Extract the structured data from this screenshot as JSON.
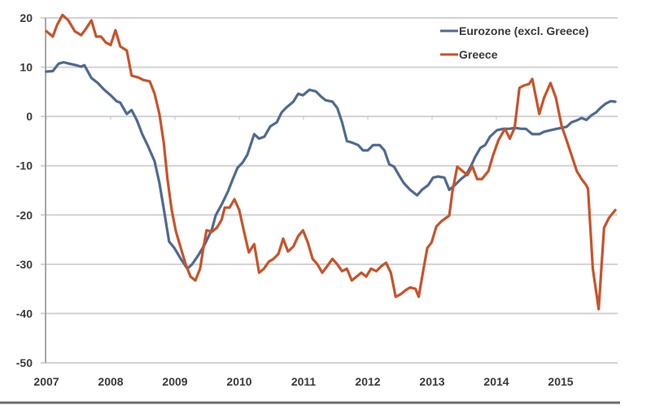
{
  "chart_data": {
    "type": "line",
    "title": "",
    "xlabel": "",
    "ylabel": "",
    "x_unit": "months since Jan 2007",
    "xlim": [
      0,
      107
    ],
    "ylim": [
      -50,
      20
    ],
    "grid": true,
    "legend_position": "top-right",
    "x_tick_labels": [
      {
        "label": "2007",
        "x": 0
      },
      {
        "label": "2008",
        "x": 12
      },
      {
        "label": "2009",
        "x": 24
      },
      {
        "label": "2010",
        "x": 36
      },
      {
        "label": "2011",
        "x": 48
      },
      {
        "label": "2012",
        "x": 60
      },
      {
        "label": "2013",
        "x": 72
      },
      {
        "label": "2014",
        "x": 84
      },
      {
        "label": "2015",
        "x": 96
      }
    ],
    "y_ticks": [
      20,
      10,
      0,
      -10,
      -20,
      -30,
      -40,
      -50
    ],
    "y_tick_labels": [
      "20",
      "10",
      "0",
      "-10",
      "-20",
      "-30",
      "-40",
      "-50"
    ],
    "series": [
      {
        "name": "Eurozone (excl. Greece)",
        "color": "#4f6a8f",
        "points": [
          [
            0,
            9.1
          ],
          [
            1.2,
            9.2
          ],
          [
            2.3,
            10.7
          ],
          [
            3.2,
            11.0
          ],
          [
            4.3,
            10.7
          ],
          [
            5.5,
            10.4
          ],
          [
            6.5,
            10.1
          ],
          [
            7.1,
            10.4
          ],
          [
            8.4,
            7.8
          ],
          [
            9.6,
            6.8
          ],
          [
            10.8,
            5.4
          ],
          [
            12.0,
            4.3
          ],
          [
            13.1,
            3.1
          ],
          [
            13.8,
            2.8
          ],
          [
            15.0,
            0.5
          ],
          [
            15.9,
            1.3
          ],
          [
            16.9,
            -0.8
          ],
          [
            17.9,
            -3.6
          ],
          [
            19.0,
            -6.1
          ],
          [
            20.2,
            -9.1
          ],
          [
            21.1,
            -13.5
          ],
          [
            22.0,
            -19.3
          ],
          [
            22.9,
            -25.4
          ],
          [
            23.9,
            -26.7
          ],
          [
            25.1,
            -28.9
          ],
          [
            26.3,
            -30.9
          ],
          [
            27.2,
            -30.0
          ],
          [
            28.4,
            -28.1
          ],
          [
            29.6,
            -25.9
          ],
          [
            30.9,
            -22.9
          ],
          [
            31.6,
            -20.1
          ],
          [
            32.8,
            -17.7
          ],
          [
            33.9,
            -15.2
          ],
          [
            34.8,
            -12.7
          ],
          [
            35.7,
            -10.4
          ],
          [
            36.6,
            -9.4
          ],
          [
            37.5,
            -7.8
          ],
          [
            38.8,
            -3.6
          ],
          [
            39.7,
            -4.5
          ],
          [
            40.7,
            -4.1
          ],
          [
            41.8,
            -2.0
          ],
          [
            43.0,
            -1.2
          ],
          [
            43.9,
            0.8
          ],
          [
            44.8,
            1.8
          ],
          [
            46.1,
            3.0
          ],
          [
            47.0,
            4.6
          ],
          [
            47.9,
            4.3
          ],
          [
            49.1,
            5.4
          ],
          [
            50.3,
            5.1
          ],
          [
            51.2,
            4.1
          ],
          [
            52.1,
            3.3
          ],
          [
            53.4,
            3.0
          ],
          [
            54.3,
            1.7
          ],
          [
            55.2,
            -1.2
          ],
          [
            56.1,
            -5.0
          ],
          [
            57.0,
            -5.3
          ],
          [
            58.2,
            -5.8
          ],
          [
            59.1,
            -6.9
          ],
          [
            60.0,
            -6.9
          ],
          [
            61.0,
            -5.8
          ],
          [
            62.2,
            -5.8
          ],
          [
            63.1,
            -6.9
          ],
          [
            64.0,
            -9.7
          ],
          [
            64.9,
            -10.2
          ],
          [
            65.8,
            -11.9
          ],
          [
            66.7,
            -13.5
          ],
          [
            67.9,
            -14.9
          ],
          [
            69.2,
            -16.0
          ],
          [
            70.1,
            -14.9
          ],
          [
            71.3,
            -13.9
          ],
          [
            72.2,
            -12.4
          ],
          [
            73.1,
            -12.2
          ],
          [
            74.3,
            -12.4
          ],
          [
            75.2,
            -14.9
          ],
          [
            76.2,
            -14.0
          ],
          [
            77.4,
            -12.7
          ],
          [
            78.3,
            -11.9
          ],
          [
            79.2,
            -10.2
          ],
          [
            80.1,
            -8.1
          ],
          [
            81.0,
            -6.4
          ],
          [
            81.9,
            -5.8
          ],
          [
            82.8,
            -4.1
          ],
          [
            84.1,
            -2.8
          ],
          [
            85.3,
            -2.5
          ],
          [
            86.5,
            -2.5
          ],
          [
            87.4,
            -2.3
          ],
          [
            88.6,
            -2.5
          ],
          [
            89.5,
            -2.5
          ],
          [
            90.7,
            -3.6
          ],
          [
            92.0,
            -3.6
          ],
          [
            92.9,
            -3.1
          ],
          [
            94.1,
            -2.8
          ],
          [
            95.3,
            -2.5
          ],
          [
            96.2,
            -2.3
          ],
          [
            97.1,
            -2.1
          ],
          [
            98.0,
            -1.2
          ],
          [
            99.0,
            -0.8
          ],
          [
            99.9,
            -0.3
          ],
          [
            100.8,
            -0.7
          ],
          [
            101.7,
            0.2
          ],
          [
            102.6,
            0.8
          ],
          [
            103.5,
            1.8
          ],
          [
            104.4,
            2.6
          ],
          [
            105.3,
            3.1
          ],
          [
            106.2,
            3.0
          ]
        ]
      },
      {
        "name": "Greece",
        "color": "#c8532a",
        "points": [
          [
            0,
            17.3
          ],
          [
            1.2,
            16.2
          ],
          [
            2.0,
            18.6
          ],
          [
            3.0,
            20.6
          ],
          [
            4.1,
            19.5
          ],
          [
            5.3,
            17.3
          ],
          [
            6.5,
            16.5
          ],
          [
            7.4,
            17.8
          ],
          [
            8.4,
            19.5
          ],
          [
            9.3,
            16.2
          ],
          [
            10.2,
            16.2
          ],
          [
            11.1,
            15.0
          ],
          [
            12.0,
            14.5
          ],
          [
            12.9,
            17.5
          ],
          [
            13.8,
            14.2
          ],
          [
            15.0,
            13.4
          ],
          [
            15.9,
            8.3
          ],
          [
            17.2,
            7.9
          ],
          [
            18.1,
            7.4
          ],
          [
            19.3,
            7.1
          ],
          [
            20.2,
            4.6
          ],
          [
            21.1,
            0.5
          ],
          [
            21.9,
            -5.3
          ],
          [
            22.6,
            -12.7
          ],
          [
            23.4,
            -19.0
          ],
          [
            24.2,
            -23.4
          ],
          [
            25.1,
            -26.7
          ],
          [
            26.0,
            -30.0
          ],
          [
            26.9,
            -32.5
          ],
          [
            27.8,
            -33.3
          ],
          [
            28.7,
            -30.9
          ],
          [
            29.3,
            -26.7
          ],
          [
            29.9,
            -23.1
          ],
          [
            30.9,
            -23.4
          ],
          [
            31.8,
            -22.6
          ],
          [
            32.7,
            -21.0
          ],
          [
            33.3,
            -18.5
          ],
          [
            34.2,
            -18.5
          ],
          [
            35.1,
            -16.8
          ],
          [
            36.0,
            -19.0
          ],
          [
            36.9,
            -23.4
          ],
          [
            37.8,
            -27.6
          ],
          [
            38.8,
            -25.9
          ],
          [
            39.7,
            -31.7
          ],
          [
            40.6,
            -30.9
          ],
          [
            41.5,
            -29.5
          ],
          [
            42.4,
            -28.9
          ],
          [
            43.3,
            -27.9
          ],
          [
            44.2,
            -24.8
          ],
          [
            45.1,
            -27.4
          ],
          [
            46.1,
            -26.4
          ],
          [
            47.0,
            -24.3
          ],
          [
            47.9,
            -23.1
          ],
          [
            48.8,
            -25.6
          ],
          [
            49.7,
            -28.9
          ],
          [
            50.6,
            -30.0
          ],
          [
            51.5,
            -31.7
          ],
          [
            52.4,
            -30.4
          ],
          [
            53.4,
            -28.9
          ],
          [
            54.3,
            -30.0
          ],
          [
            55.2,
            -31.4
          ],
          [
            56.1,
            -30.9
          ],
          [
            57.0,
            -33.3
          ],
          [
            57.9,
            -32.5
          ],
          [
            58.8,
            -31.7
          ],
          [
            59.7,
            -32.5
          ],
          [
            60.6,
            -30.9
          ],
          [
            61.6,
            -31.4
          ],
          [
            62.5,
            -30.4
          ],
          [
            63.4,
            -29.7
          ],
          [
            64.3,
            -31.7
          ],
          [
            65.2,
            -36.6
          ],
          [
            66.1,
            -36.1
          ],
          [
            67.0,
            -35.3
          ],
          [
            67.9,
            -34.7
          ],
          [
            68.9,
            -35.0
          ],
          [
            69.5,
            -36.6
          ],
          [
            70.4,
            -30.9
          ],
          [
            71.1,
            -26.7
          ],
          [
            71.9,
            -25.6
          ],
          [
            72.8,
            -22.3
          ],
          [
            73.7,
            -21.3
          ],
          [
            75.2,
            -20.1
          ],
          [
            75.8,
            -15.2
          ],
          [
            76.7,
            -10.2
          ],
          [
            77.7,
            -11.1
          ],
          [
            78.6,
            -11.9
          ],
          [
            79.5,
            -10.1
          ],
          [
            80.4,
            -12.7
          ],
          [
            81.3,
            -12.7
          ],
          [
            82.5,
            -11.1
          ],
          [
            83.4,
            -7.8
          ],
          [
            84.4,
            -4.8
          ],
          [
            85.6,
            -2.5
          ],
          [
            86.5,
            -4.5
          ],
          [
            87.4,
            -2.3
          ],
          [
            88.3,
            5.8
          ],
          [
            89.2,
            6.3
          ],
          [
            90.1,
            6.6
          ],
          [
            90.7,
            7.6
          ],
          [
            92.0,
            0.5
          ],
          [
            92.9,
            3.8
          ],
          [
            94.1,
            6.8
          ],
          [
            95.1,
            3.8
          ],
          [
            96.2,
            -2.0
          ],
          [
            97.1,
            -4.8
          ],
          [
            98.0,
            -7.8
          ],
          [
            99.0,
            -11.1
          ],
          [
            99.9,
            -12.7
          ],
          [
            100.8,
            -14.0
          ],
          [
            101.1,
            -14.7
          ],
          [
            102.0,
            -30.9
          ],
          [
            103.1,
            -39.1
          ],
          [
            104.1,
            -22.6
          ],
          [
            105.0,
            -20.6
          ],
          [
            106.2,
            -19.0
          ]
        ]
      }
    ]
  }
}
